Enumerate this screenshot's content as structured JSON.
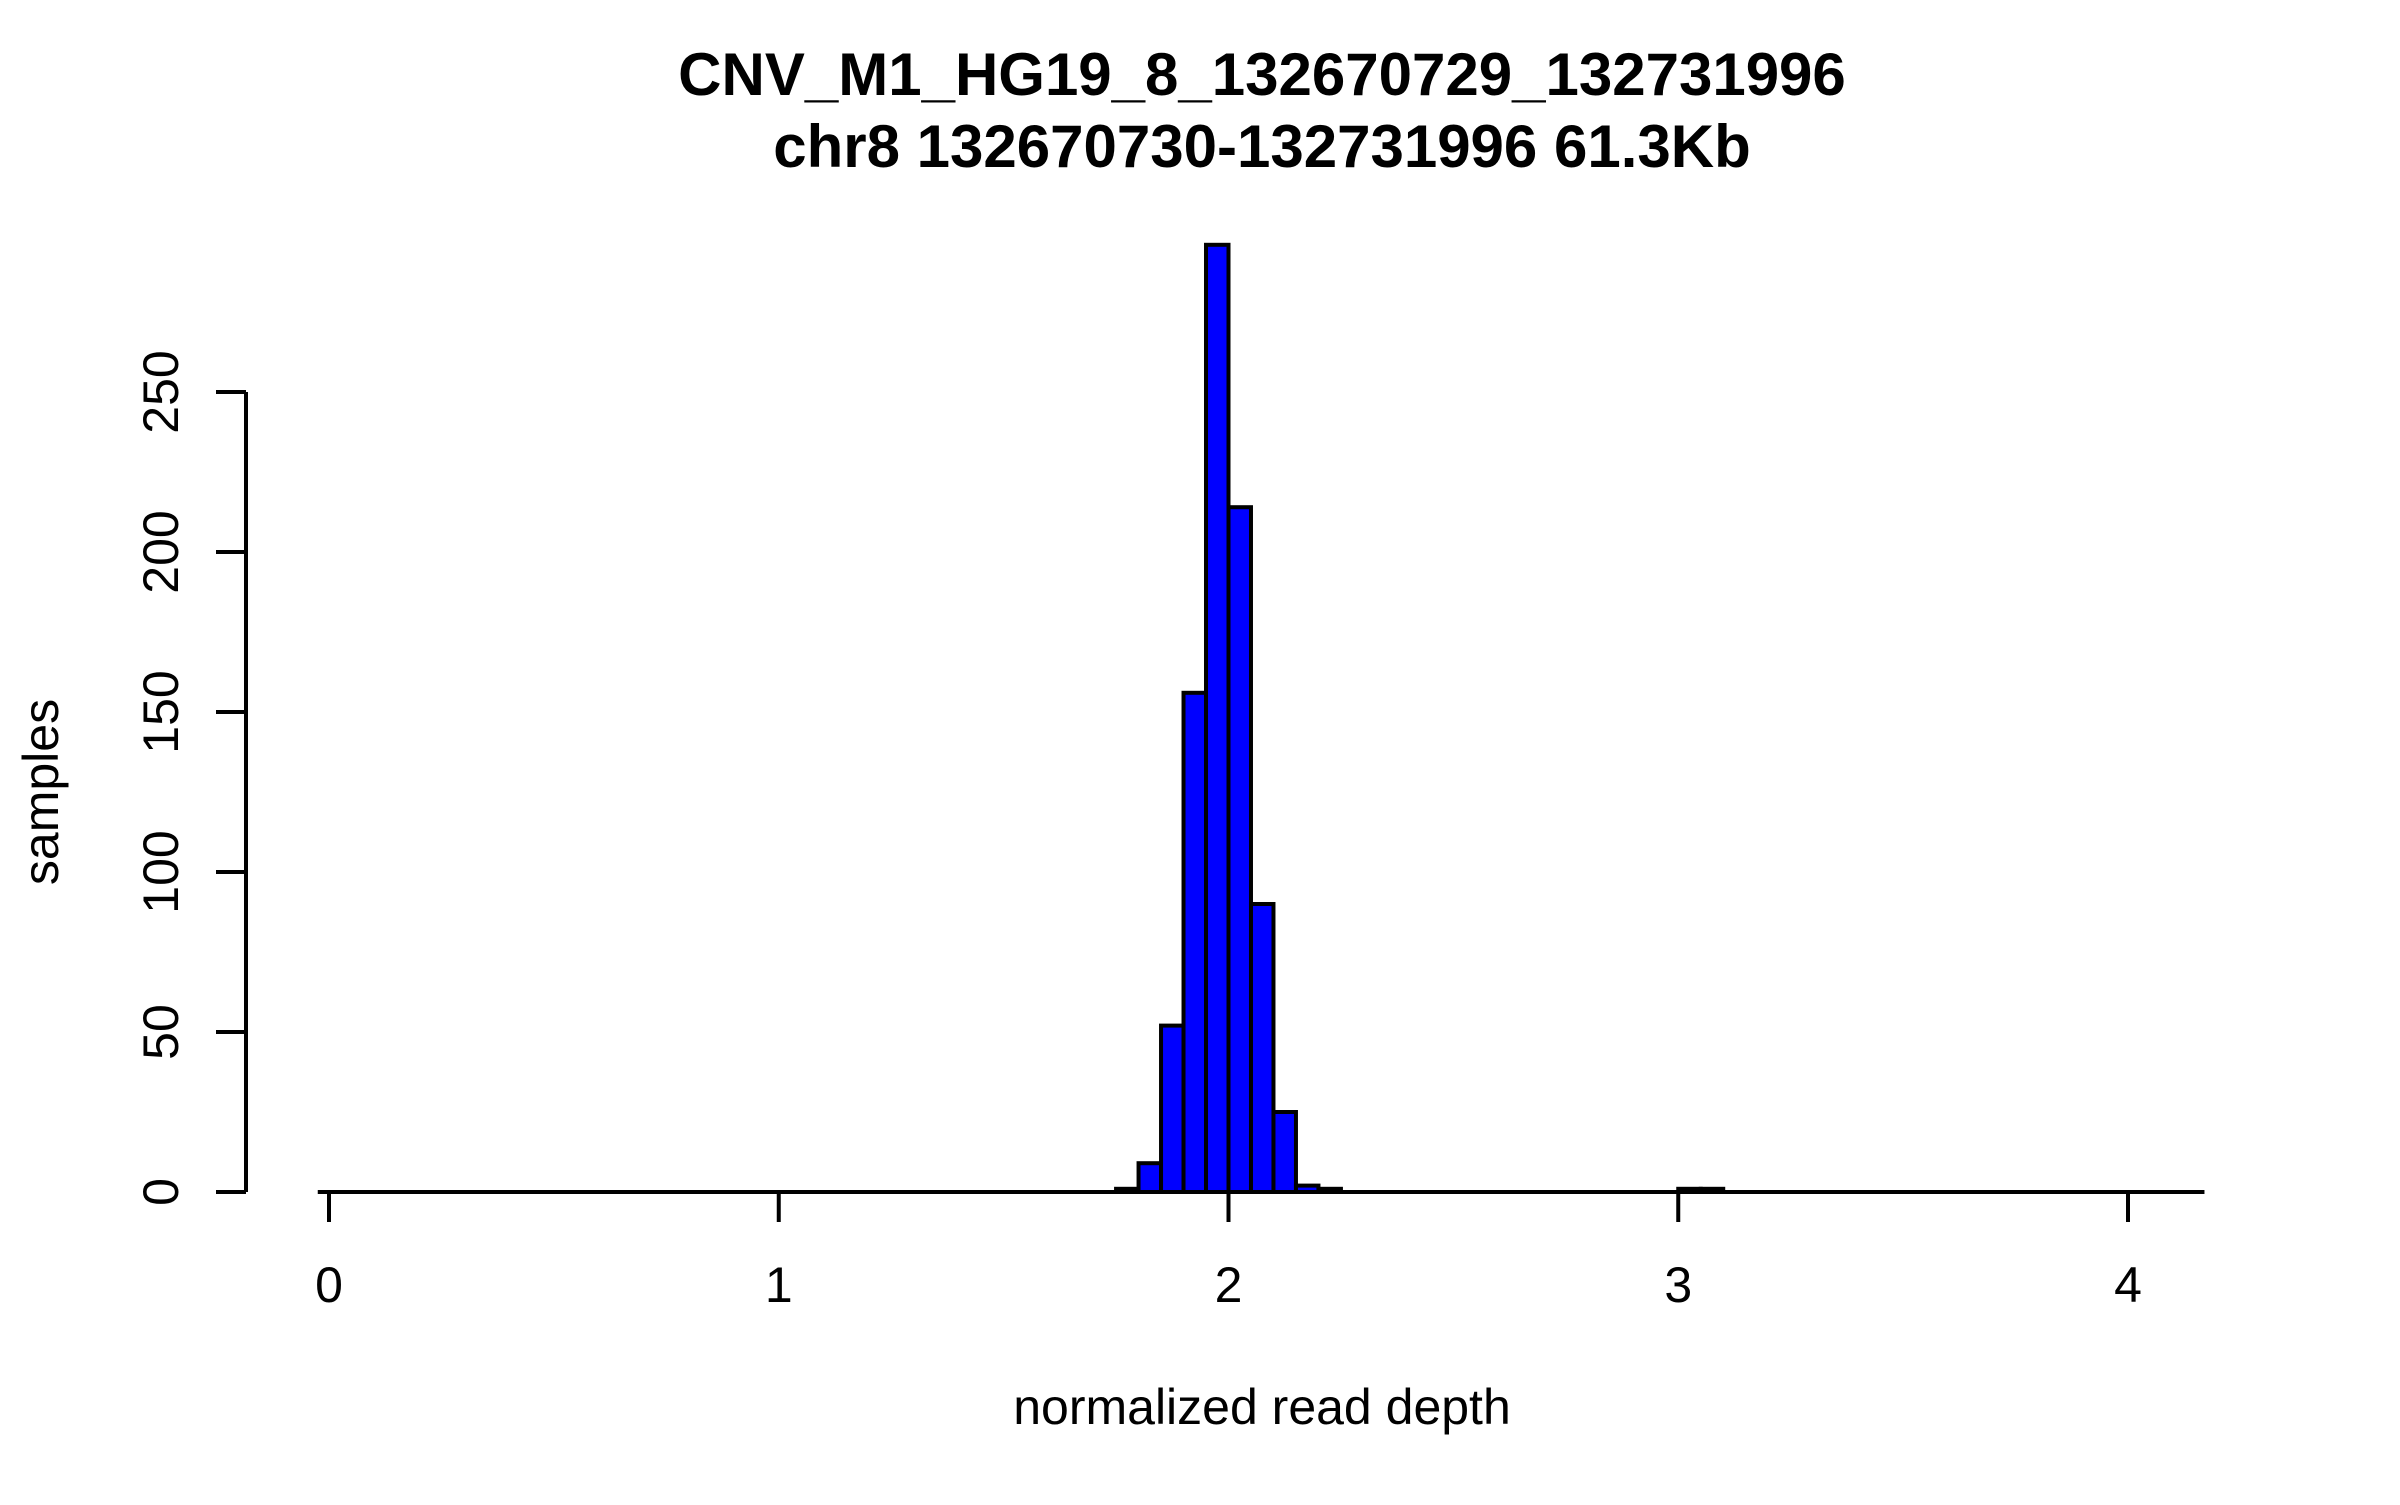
{
  "chart_data": {
    "type": "bar",
    "subtype": "histogram",
    "title": "CNV_M1_HG19_8_132670729_132731996",
    "subtitle": "chr8 132670730-132731996 61.3Kb",
    "xlabel": "normalized read depth",
    "ylabel": "samples",
    "grid": false,
    "legend": false,
    "background": "#ffffff",
    "bar_fill": "#0000ff",
    "bar_border": "#000000",
    "axis_color": "#000000",
    "bin_width": 0.05,
    "x_ticks": [
      0,
      1,
      2,
      3,
      4
    ],
    "y_ticks": [
      0,
      50,
      100,
      150,
      200,
      250
    ],
    "xlim": [
      -0.025,
      4.17
    ],
    "ylim": [
      0,
      296
    ],
    "bins": [
      {
        "x0": 1.75,
        "x1": 1.8,
        "count": 1
      },
      {
        "x0": 1.8,
        "x1": 1.85,
        "count": 9
      },
      {
        "x0": 1.85,
        "x1": 1.9,
        "count": 52
      },
      {
        "x0": 1.9,
        "x1": 1.95,
        "count": 156
      },
      {
        "x0": 1.95,
        "x1": 2.0,
        "count": 296
      },
      {
        "x0": 2.0,
        "x1": 2.05,
        "count": 214
      },
      {
        "x0": 2.05,
        "x1": 2.1,
        "count": 90
      },
      {
        "x0": 2.1,
        "x1": 2.15,
        "count": 25
      },
      {
        "x0": 2.15,
        "x1": 2.2,
        "count": 2
      },
      {
        "x0": 2.2,
        "x1": 2.25,
        "count": 1
      },
      {
        "x0": 3.0,
        "x1": 3.05,
        "count": 1
      },
      {
        "x0": 3.05,
        "x1": 3.1,
        "count": 1
      }
    ]
  }
}
